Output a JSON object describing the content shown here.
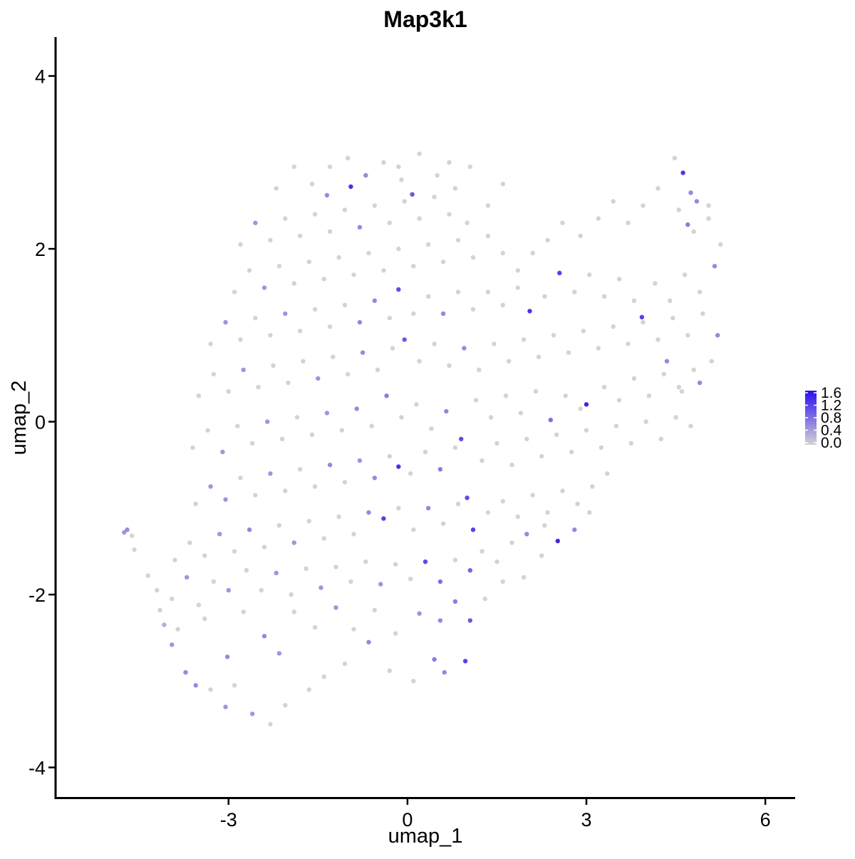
{
  "chart_data": {
    "type": "scatter",
    "title": "Map3k1",
    "xlabel": "umap_1",
    "ylabel": "umap_2",
    "xlim": [
      -5.9,
      6.5
    ],
    "ylim": [
      -4.35,
      4.45
    ],
    "xticks": [
      -3,
      0,
      3,
      6
    ],
    "yticks": [
      -4,
      -2,
      0,
      2,
      4
    ],
    "xtick_labels": [
      "-3",
      "0",
      "3",
      "6"
    ],
    "ytick_labels": [
      "-4",
      "-2",
      "0",
      "2",
      "4"
    ],
    "grid": false,
    "legend": {
      "placement": "right",
      "type": "colorbar",
      "range": [
        0.0,
        1.6
      ],
      "ticks": [
        "1.6",
        "1.2",
        "0.8",
        "0.4",
        "0.0"
      ],
      "low_color": "#d3d3d3",
      "high_color": "#2b0df2"
    },
    "points": [
      [
        -4.7,
        -1.25,
        0.6
      ],
      [
        -4.75,
        -1.28,
        0.5
      ],
      [
        -4.62,
        -1.32,
        0.0
      ],
      [
        -4.58,
        -1.48,
        0.0
      ],
      [
        -4.35,
        -1.78,
        0.0
      ],
      [
        -4.15,
        -2.18,
        0.0
      ],
      [
        -4.08,
        -2.35,
        0.3
      ],
      [
        -3.95,
        -2.58,
        0.5
      ],
      [
        -3.72,
        -2.9,
        0.6
      ],
      [
        -3.55,
        -3.05,
        0.6
      ],
      [
        -3.3,
        -3.1,
        0.0
      ],
      [
        -3.05,
        -3.3,
        0.5
      ],
      [
        -2.9,
        -3.05,
        0.0
      ],
      [
        -2.6,
        -3.38,
        0.5
      ],
      [
        -2.3,
        -3.5,
        0.0
      ],
      [
        -2.05,
        -3.28,
        0.0
      ],
      [
        -1.65,
        -3.1,
        0.0
      ],
      [
        -1.4,
        -2.95,
        0.0
      ],
      [
        -1.05,
        -2.8,
        0.0
      ],
      [
        -0.65,
        -2.55,
        0.6
      ],
      [
        -0.3,
        -2.88,
        0.0
      ],
      [
        0.1,
        -3.0,
        0.0
      ],
      [
        0.45,
        -2.75,
        0.7
      ],
      [
        0.62,
        -2.9,
        0.6
      ],
      [
        0.97,
        -2.77,
        1.2
      ],
      [
        -3.85,
        -2.4,
        0.0
      ],
      [
        -3.4,
        -2.28,
        0.0
      ],
      [
        -3.02,
        -2.72,
        0.6
      ],
      [
        -2.75,
        -2.2,
        0.0
      ],
      [
        -2.4,
        -2.48,
        0.6
      ],
      [
        -2.15,
        -2.68,
        0.5
      ],
      [
        -1.9,
        -2.2,
        0.0
      ],
      [
        -1.55,
        -2.38,
        0.0
      ],
      [
        -1.2,
        -2.15,
        0.5
      ],
      [
        -0.9,
        -2.4,
        0.0
      ],
      [
        -0.55,
        -2.18,
        0.0
      ],
      [
        -0.2,
        -2.45,
        0.0
      ],
      [
        0.2,
        -2.22,
        0.5
      ],
      [
        0.55,
        -2.3,
        0.6
      ],
      [
        0.8,
        -2.08,
        0.7
      ],
      [
        1.05,
        -2.3,
        1.0
      ],
      [
        1.3,
        -2.05,
        0.0
      ],
      [
        1.6,
        -1.85,
        0.0
      ],
      [
        1.95,
        -1.8,
        0.0
      ],
      [
        2.25,
        -1.55,
        0.0
      ],
      [
        -4.2,
        -1.95,
        0.0
      ],
      [
        -3.95,
        -2.05,
        0.0
      ],
      [
        -3.7,
        -1.8,
        0.5
      ],
      [
        -3.5,
        -2.12,
        0.0
      ],
      [
        -3.25,
        -1.85,
        0.0
      ],
      [
        -3.0,
        -1.95,
        0.5
      ],
      [
        -2.7,
        -1.72,
        0.0
      ],
      [
        -2.45,
        -1.95,
        0.0
      ],
      [
        -2.2,
        -1.75,
        0.5
      ],
      [
        -1.95,
        -2.0,
        0.0
      ],
      [
        -1.7,
        -1.7,
        0.0
      ],
      [
        -1.45,
        -1.92,
        0.5
      ],
      [
        -1.2,
        -1.68,
        0.0
      ],
      [
        -0.95,
        -1.85,
        0.0
      ],
      [
        -0.7,
        -1.62,
        0.0
      ],
      [
        -0.45,
        -1.88,
        0.5
      ],
      [
        -0.2,
        -1.65,
        0.0
      ],
      [
        0.05,
        -1.82,
        0.0
      ],
      [
        0.3,
        -1.62,
        1.1
      ],
      [
        0.55,
        -1.85,
        0.8
      ],
      [
        0.8,
        -1.6,
        0.0
      ],
      [
        1.05,
        -1.72,
        0.9
      ],
      [
        1.25,
        -1.5,
        0.0
      ],
      [
        1.5,
        -1.62,
        0.0
      ],
      [
        1.75,
        -1.4,
        0.0
      ],
      [
        2.0,
        -1.3,
        0.6
      ],
      [
        2.3,
        -1.2,
        0.0
      ],
      [
        2.52,
        -1.38,
        1.4
      ],
      [
        2.8,
        -1.25,
        0.6
      ],
      [
        3.05,
        -1.05,
        0.0
      ],
      [
        -3.9,
        -1.6,
        0.0
      ],
      [
        -3.65,
        -1.4,
        0.0
      ],
      [
        -3.4,
        -1.55,
        0.0
      ],
      [
        -3.15,
        -1.3,
        0.5
      ],
      [
        -2.9,
        -1.5,
        0.0
      ],
      [
        -2.65,
        -1.25,
        0.6
      ],
      [
        -2.4,
        -1.45,
        0.0
      ],
      [
        -2.15,
        -1.2,
        0.0
      ],
      [
        -1.9,
        -1.4,
        0.5
      ],
      [
        -1.65,
        -1.15,
        0.0
      ],
      [
        -1.4,
        -1.35,
        0.0
      ],
      [
        -1.15,
        -1.1,
        0.0
      ],
      [
        -0.9,
        -1.3,
        0.0
      ],
      [
        -0.65,
        -1.05,
        0.6
      ],
      [
        -0.4,
        -1.12,
        1.2
      ],
      [
        -0.15,
        -1.0,
        0.0
      ],
      [
        0.1,
        -1.25,
        0.0
      ],
      [
        0.35,
        -1.0,
        0.6
      ],
      [
        0.6,
        -1.18,
        0.0
      ],
      [
        0.85,
        -0.95,
        0.0
      ],
      [
        1.1,
        -1.25,
        1.2
      ],
      [
        1.35,
        -1.05,
        0.0
      ],
      [
        1.6,
        -0.92,
        0.0
      ],
      [
        1.85,
        -1.1,
        0.0
      ],
      [
        2.1,
        -0.85,
        0.0
      ],
      [
        2.35,
        -1.05,
        0.0
      ],
      [
        2.6,
        -0.8,
        0.0
      ],
      [
        2.85,
        -0.95,
        0.0
      ],
      [
        3.1,
        -0.75,
        0.0
      ],
      [
        3.35,
        -0.6,
        0.0
      ],
      [
        -3.55,
        -0.95,
        0.0
      ],
      [
        -3.3,
        -0.75,
        0.5
      ],
      [
        -3.05,
        -0.9,
        0.5
      ],
      [
        -2.8,
        -0.65,
        0.0
      ],
      [
        -2.55,
        -0.85,
        0.0
      ],
      [
        -2.3,
        -0.6,
        0.5
      ],
      [
        -2.05,
        -0.8,
        0.0
      ],
      [
        -1.8,
        -0.55,
        0.0
      ],
      [
        -1.55,
        -0.75,
        0.0
      ],
      [
        -1.3,
        -0.5,
        0.6
      ],
      [
        -1.05,
        -0.7,
        0.0
      ],
      [
        -0.8,
        -0.45,
        0.5
      ],
      [
        -0.55,
        -0.65,
        0.6
      ],
      [
        -0.3,
        -0.4,
        0.0
      ],
      [
        -0.15,
        -0.52,
        1.3
      ],
      [
        0.05,
        -0.6,
        0.0
      ],
      [
        0.3,
        -0.35,
        0.0
      ],
      [
        0.55,
        -0.55,
        0.7
      ],
      [
        0.8,
        -0.3,
        0.0
      ],
      [
        1.0,
        -0.88,
        1.1
      ],
      [
        1.25,
        -0.45,
        0.0
      ],
      [
        1.5,
        -0.25,
        0.0
      ],
      [
        1.75,
        -0.5,
        0.0
      ],
      [
        2.0,
        -0.2,
        0.0
      ],
      [
        2.25,
        -0.4,
        0.0
      ],
      [
        2.5,
        -0.15,
        0.0
      ],
      [
        2.75,
        -0.35,
        0.0
      ],
      [
        3.0,
        -0.1,
        0.0
      ],
      [
        3.25,
        -0.3,
        0.0
      ],
      [
        3.5,
        -0.05,
        0.0
      ],
      [
        3.75,
        -0.25,
        0.0
      ],
      [
        4.0,
        0.0,
        0.0
      ],
      [
        4.25,
        -0.2,
        0.0
      ],
      [
        4.5,
        0.05,
        0.0
      ],
      [
        4.75,
        -0.05,
        0.0
      ],
      [
        -3.6,
        -0.3,
        0.0
      ],
      [
        -3.35,
        -0.1,
        0.0
      ],
      [
        -3.1,
        -0.35,
        0.5
      ],
      [
        -2.85,
        -0.05,
        0.0
      ],
      [
        -2.6,
        -0.25,
        0.0
      ],
      [
        -2.35,
        0.0,
        0.5
      ],
      [
        -2.1,
        -0.2,
        0.0
      ],
      [
        -1.85,
        0.05,
        0.0
      ],
      [
        -1.6,
        -0.15,
        0.0
      ],
      [
        -1.35,
        0.1,
        0.5
      ],
      [
        -1.1,
        -0.1,
        0.0
      ],
      [
        -0.85,
        0.15,
        0.6
      ],
      [
        -0.6,
        -0.05,
        0.0
      ],
      [
        -0.35,
        0.3,
        0.7
      ],
      [
        -0.1,
        0.05,
        0.0
      ],
      [
        0.15,
        0.2,
        0.0
      ],
      [
        0.4,
        -0.08,
        0.0
      ],
      [
        0.65,
        0.12,
        0.6
      ],
      [
        0.9,
        -0.2,
        1.1
      ],
      [
        1.15,
        0.25,
        0.0
      ],
      [
        1.4,
        0.05,
        0.0
      ],
      [
        1.65,
        0.3,
        0.0
      ],
      [
        1.9,
        0.1,
        0.0
      ],
      [
        2.15,
        0.35,
        0.0
      ],
      [
        2.4,
        0.02,
        0.8
      ],
      [
        2.65,
        0.3,
        0.0
      ],
      [
        2.9,
        0.15,
        0.0
      ],
      [
        3.0,
        0.2,
        1.4
      ],
      [
        3.3,
        0.4,
        0.0
      ],
      [
        3.55,
        0.25,
        0.0
      ],
      [
        3.8,
        0.5,
        0.0
      ],
      [
        4.05,
        0.3,
        0.0
      ],
      [
        4.3,
        0.55,
        0.0
      ],
      [
        4.55,
        0.4,
        0.0
      ],
      [
        4.8,
        0.6,
        0.0
      ],
      [
        -3.5,
        0.3,
        0.0
      ],
      [
        -3.25,
        0.55,
        0.0
      ],
      [
        -3.0,
        0.35,
        0.0
      ],
      [
        -2.75,
        0.6,
        0.5
      ],
      [
        -2.5,
        0.4,
        0.0
      ],
      [
        -2.25,
        0.65,
        0.0
      ],
      [
        -2.0,
        0.45,
        0.0
      ],
      [
        -1.75,
        0.7,
        0.0
      ],
      [
        -1.5,
        0.5,
        0.5
      ],
      [
        -1.25,
        0.75,
        0.0
      ],
      [
        -1.0,
        0.55,
        0.0
      ],
      [
        -0.75,
        0.8,
        0.6
      ],
      [
        -0.5,
        0.6,
        0.0
      ],
      [
        -0.25,
        0.85,
        0.0
      ],
      [
        -0.05,
        0.95,
        1.0
      ],
      [
        0.2,
        0.7,
        0.0
      ],
      [
        0.45,
        0.9,
        0.0
      ],
      [
        0.7,
        0.65,
        0.0
      ],
      [
        0.95,
        0.85,
        0.6
      ],
      [
        1.2,
        0.6,
        0.0
      ],
      [
        1.45,
        0.9,
        0.0
      ],
      [
        1.7,
        0.7,
        0.0
      ],
      [
        1.95,
        0.95,
        0.0
      ],
      [
        2.2,
        0.75,
        0.0
      ],
      [
        2.45,
        1.0,
        0.0
      ],
      [
        2.7,
        0.8,
        0.0
      ],
      [
        2.95,
        1.05,
        0.0
      ],
      [
        3.2,
        0.85,
        0.0
      ],
      [
        3.45,
        1.1,
        0.0
      ],
      [
        3.7,
        0.9,
        0.0
      ],
      [
        3.95,
        1.15,
        0.0
      ],
      [
        4.2,
        0.95,
        0.0
      ],
      [
        4.45,
        1.2,
        0.0
      ],
      [
        4.7,
        1.0,
        0.0
      ],
      [
        4.95,
        1.25,
        0.0
      ],
      [
        5.2,
        1.0,
        0.6
      ],
      [
        5.1,
        0.7,
        0.0
      ],
      [
        4.9,
        0.45,
        0.6
      ],
      [
        4.6,
        0.35,
        0.0
      ],
      [
        4.35,
        0.7,
        0.6
      ],
      [
        -3.3,
        0.9,
        0.0
      ],
      [
        -3.05,
        1.15,
        0.5
      ],
      [
        -2.8,
        0.95,
        0.0
      ],
      [
        -2.55,
        1.2,
        0.0
      ],
      [
        -2.3,
        1.0,
        0.0
      ],
      [
        -2.05,
        1.25,
        0.5
      ],
      [
        -1.8,
        1.05,
        0.0
      ],
      [
        -1.55,
        1.3,
        0.0
      ],
      [
        -1.3,
        1.1,
        0.0
      ],
      [
        -1.05,
        1.35,
        0.0
      ],
      [
        -0.8,
        1.15,
        0.6
      ],
      [
        -0.55,
        1.4,
        0.6
      ],
      [
        -0.3,
        1.2,
        0.0
      ],
      [
        -0.15,
        1.53,
        1.1
      ],
      [
        0.1,
        1.25,
        0.0
      ],
      [
        0.35,
        1.45,
        0.0
      ],
      [
        0.6,
        1.25,
        0.6
      ],
      [
        0.85,
        1.5,
        0.0
      ],
      [
        1.1,
        1.3,
        0.0
      ],
      [
        1.35,
        1.5,
        0.0
      ],
      [
        1.6,
        1.35,
        0.0
      ],
      [
        1.85,
        1.55,
        0.0
      ],
      [
        2.05,
        1.28,
        1.3
      ],
      [
        2.3,
        1.45,
        0.0
      ],
      [
        2.55,
        1.72,
        1.2
      ],
      [
        2.8,
        1.5,
        0.0
      ],
      [
        3.05,
        1.7,
        0.0
      ],
      [
        3.3,
        1.45,
        0.0
      ],
      [
        3.55,
        1.65,
        0.0
      ],
      [
        3.8,
        1.4,
        0.0
      ],
      [
        3.93,
        1.21,
        1.2
      ],
      [
        4.15,
        1.6,
        0.0
      ],
      [
        4.4,
        1.4,
        0.0
      ],
      [
        4.65,
        1.7,
        0.0
      ],
      [
        4.9,
        1.5,
        0.0
      ],
      [
        5.15,
        1.8,
        0.6
      ],
      [
        5.25,
        2.05,
        0.0
      ],
      [
        5.05,
        2.35,
        0.0
      ],
      [
        4.8,
        2.2,
        0.0
      ],
      [
        4.55,
        2.45,
        0.0
      ],
      [
        -2.9,
        1.5,
        0.0
      ],
      [
        -2.65,
        1.75,
        0.0
      ],
      [
        -2.4,
        1.55,
        0.5
      ],
      [
        -2.15,
        1.8,
        0.0
      ],
      [
        -1.9,
        1.6,
        0.0
      ],
      [
        -1.65,
        1.85,
        0.0
      ],
      [
        -1.4,
        1.65,
        0.0
      ],
      [
        -1.15,
        1.9,
        0.0
      ],
      [
        -0.9,
        1.7,
        0.0
      ],
      [
        -0.65,
        1.95,
        0.0
      ],
      [
        -0.4,
        1.75,
        0.0
      ],
      [
        -0.15,
        2.0,
        0.0
      ],
      [
        0.1,
        1.8,
        0.0
      ],
      [
        0.35,
        2.05,
        0.0
      ],
      [
        0.6,
        1.85,
        0.0
      ],
      [
        0.85,
        2.1,
        0.0
      ],
      [
        1.1,
        1.9,
        0.0
      ],
      [
        1.35,
        2.15,
        0.0
      ],
      [
        1.6,
        1.95,
        0.0
      ],
      [
        1.85,
        1.75,
        0.0
      ],
      [
        2.1,
        1.95,
        0.0
      ],
      [
        2.35,
        2.1,
        0.0
      ],
      [
        2.6,
        2.3,
        0.0
      ],
      [
        2.9,
        2.15,
        0.0
      ],
      [
        3.2,
        2.35,
        0.0
      ],
      [
        3.45,
        2.55,
        0.0
      ],
      [
        3.7,
        2.3,
        0.0
      ],
      [
        3.95,
        2.5,
        0.0
      ],
      [
        4.2,
        2.7,
        0.0
      ],
      [
        4.48,
        3.05,
        0.0
      ],
      [
        4.62,
        2.88,
        1.3
      ],
      [
        4.75,
        2.65,
        0.6
      ],
      [
        4.7,
        2.28,
        0.7
      ],
      [
        4.85,
        2.55,
        0.6
      ],
      [
        5.05,
        2.5,
        0.0
      ],
      [
        -2.8,
        2.05,
        0.0
      ],
      [
        -2.55,
        2.3,
        0.5
      ],
      [
        -2.3,
        2.1,
        0.0
      ],
      [
        -2.05,
        2.35,
        0.0
      ],
      [
        -1.8,
        2.15,
        0.0
      ],
      [
        -1.55,
        2.4,
        0.0
      ],
      [
        -1.3,
        2.2,
        0.0
      ],
      [
        -1.05,
        2.45,
        0.0
      ],
      [
        -0.8,
        2.25,
        0.6
      ],
      [
        -0.55,
        2.5,
        0.0
      ],
      [
        -0.3,
        2.3,
        0.0
      ],
      [
        -0.05,
        2.55,
        0.0
      ],
      [
        0.2,
        2.35,
        0.0
      ],
      [
        0.45,
        2.6,
        0.0
      ],
      [
        0.7,
        2.4,
        0.0
      ],
      [
        1.0,
        2.3,
        0.0
      ],
      [
        1.35,
        2.5,
        0.0
      ],
      [
        1.6,
        2.75,
        0.0
      ],
      [
        -2.2,
        2.7,
        0.0
      ],
      [
        -1.9,
        2.95,
        0.0
      ],
      [
        -1.6,
        2.75,
        0.0
      ],
      [
        -1.3,
        2.95,
        0.0
      ],
      [
        -1.0,
        3.05,
        0.0
      ],
      [
        -0.7,
        2.85,
        0.6
      ],
      [
        -0.4,
        3.0,
        0.0
      ],
      [
        -0.1,
        2.8,
        0.0
      ],
      [
        0.2,
        3.1,
        0.0
      ],
      [
        0.5,
        2.85,
        0.0
      ],
      [
        0.8,
        2.7,
        0.0
      ],
      [
        -0.95,
        2.72,
        1.3
      ],
      [
        0.08,
        2.63,
        1.0
      ],
      [
        -1.35,
        2.62,
        0.6
      ],
      [
        -0.15,
        2.95,
        0.0
      ],
      [
        0.7,
        3.0,
        0.0
      ],
      [
        1.05,
        2.95,
        0.0
      ]
    ]
  }
}
